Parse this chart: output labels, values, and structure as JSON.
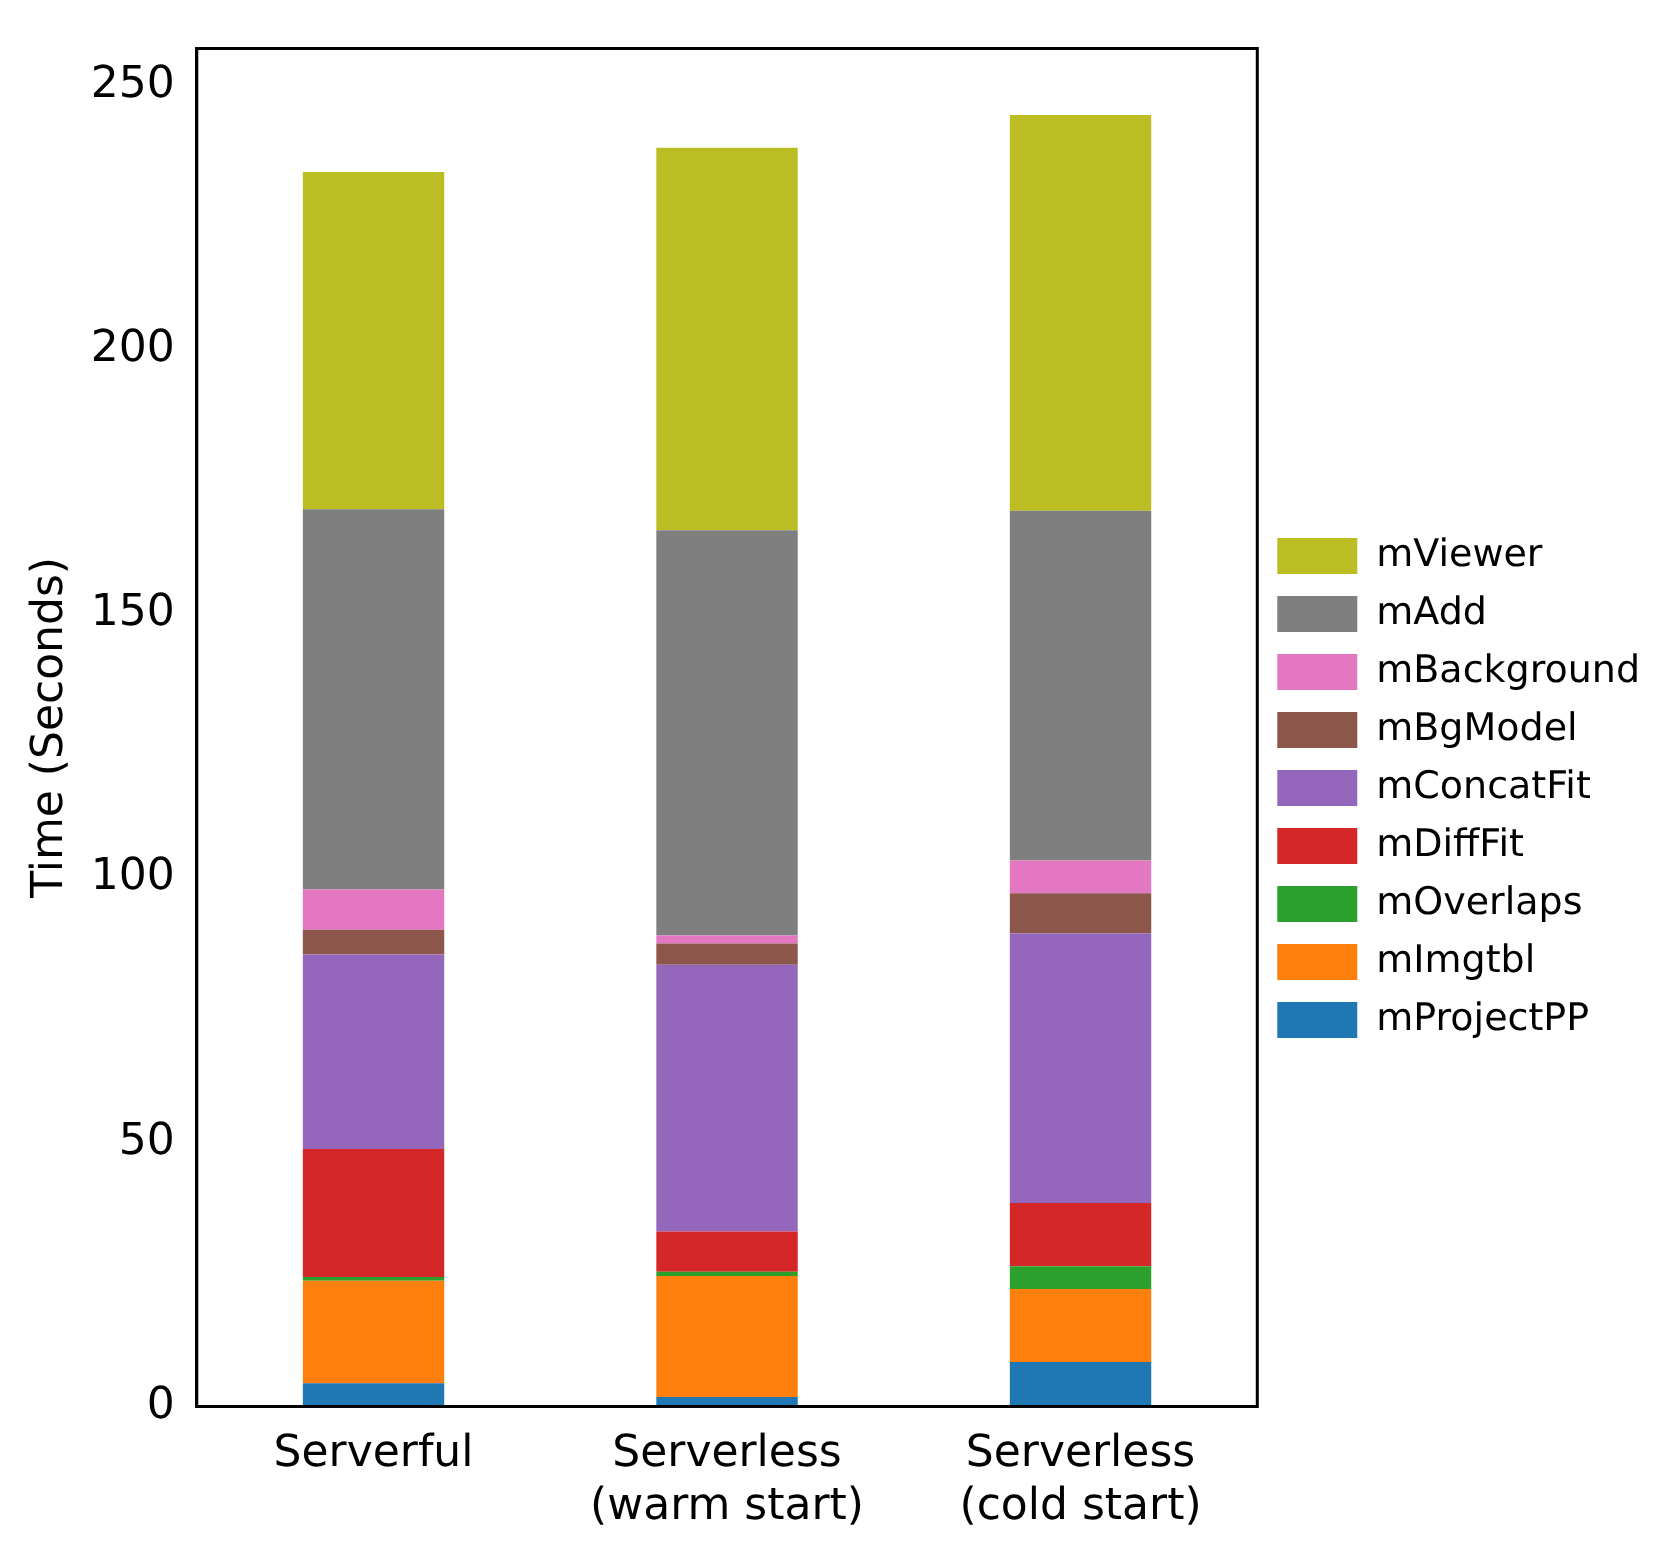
{
  "chart_data": {
    "type": "bar",
    "stacked": true,
    "ylabel": "Time (Seconds)",
    "categories": [
      "Serverful",
      "Serverless\n(warm start)",
      "Serverless\n(cold start)"
    ],
    "series": [
      {
        "name": "mProjectPP",
        "color": "#1f77b4",
        "values": [
          4.4,
          1.8,
          8.4
        ]
      },
      {
        "name": "mImgtbl",
        "color": "#ff7f0e",
        "values": [
          19.4,
          22.9,
          13.8
        ]
      },
      {
        "name": "mOverlaps",
        "color": "#2ca02c",
        "values": [
          0.7,
          0.8,
          4.3
        ]
      },
      {
        "name": "mDiffFit",
        "color": "#d62728",
        "values": [
          24.2,
          7.6,
          12.0
        ]
      },
      {
        "name": "mConcatFit",
        "color": "#9467bd",
        "values": [
          36.8,
          50.5,
          51.0
        ]
      },
      {
        "name": "mBgModel",
        "color": "#8c564b",
        "values": [
          4.7,
          4.0,
          7.6
        ]
      },
      {
        "name": "mBackground",
        "color": "#e377c2",
        "values": [
          7.6,
          1.5,
          6.2
        ]
      },
      {
        "name": "mAdd",
        "color": "#7f7f7f",
        "values": [
          72.0,
          76.7,
          66.2
        ]
      },
      {
        "name": "mViewer",
        "color": "#bcbd22",
        "values": [
          63.8,
          72.4,
          74.9
        ]
      }
    ],
    "ylim": [
      0,
      257
    ],
    "yticks": [
      0,
      50,
      100,
      150,
      200,
      250
    ],
    "grid": false,
    "legend": "right"
  }
}
